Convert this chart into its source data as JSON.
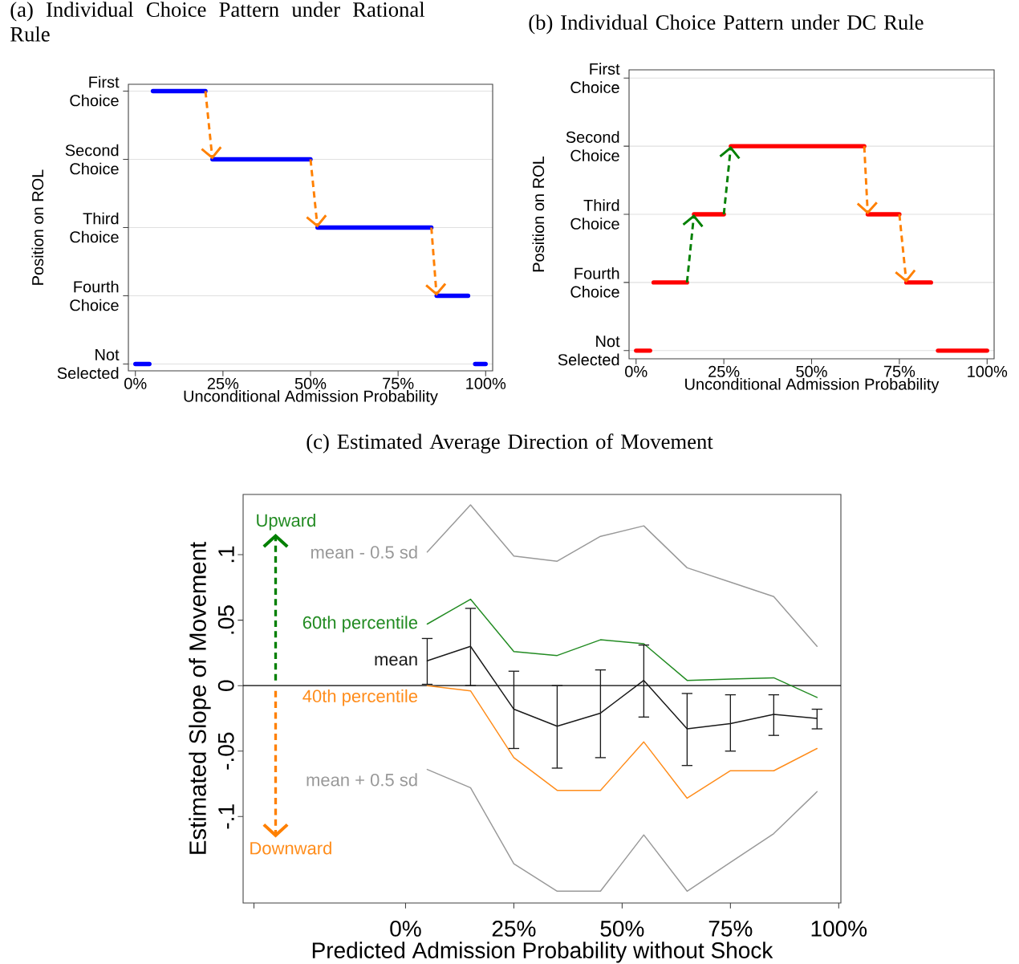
{
  "chart_data": [
    {
      "type": "bar",
      "orientation": "horizontal",
      "title": "(a) Individual Choice Pattern under Rational Rule",
      "xlabel": "Unconditional Admission Probability",
      "ylabel": "Position on ROL",
      "categories": [
        "First Choice",
        "Second Choice",
        "Third Choice",
        "Fourth Choice",
        "Not Selected"
      ],
      "xlim": [
        -2,
        102
      ],
      "xticks": [
        {
          "value": 0,
          "label": "0%"
        },
        {
          "value": 25,
          "label": "25%"
        },
        {
          "value": 50,
          "label": "50%"
        },
        {
          "value": 75,
          "label": "75%"
        },
        {
          "value": 100,
          "label": "100%"
        }
      ],
      "grid": "y",
      "series": [
        {
          "color": "#0000ff",
          "values": [
            15,
            28,
            32.5,
            9,
            4
          ],
          "base": [
            5,
            22,
            52,
            86,
            0
          ]
        },
        {
          "color": "#0000ff",
          "values": [
            null,
            null,
            null,
            null,
            3
          ],
          "base": [
            null,
            null,
            null,
            null,
            97
          ]
        }
      ]
    },
    {
      "type": "bar",
      "orientation": "horizontal",
      "title": "(b) Individual Choice Pattern under DC Rule",
      "xlabel": "Unconditional Admission Probability",
      "ylabel": "Position on ROL",
      "categories": [
        "First Choice",
        "Second Choice",
        "Third Choice",
        "Fourth Choice",
        "Not Selected"
      ],
      "xlim": [
        -2,
        102
      ],
      "xticks": [
        {
          "value": 0,
          "label": "0%"
        },
        {
          "value": 25,
          "label": "25%"
        },
        {
          "value": 50,
          "label": "50%"
        },
        {
          "value": 75,
          "label": "75%"
        },
        {
          "value": 100,
          "label": "100%"
        }
      ],
      "grid": "y",
      "series": [
        {
          "color": "#ff0000",
          "values": [
            null,
            38,
            8.5,
            9.5,
            4
          ],
          "base": [
            null,
            27,
            16.5,
            5,
            0
          ]
        },
        {
          "color": "#ff0000",
          "values": [
            null,
            null,
            9,
            7,
            14
          ],
          "base": [
            null,
            null,
            66,
            77,
            86
          ]
        }
      ]
    },
    {
      "type": "line",
      "title": "(c) Estimated Average Direction of Movement",
      "xlabel": "Predicted Admission Probability without Shock",
      "ylabel": "Estimated Slope of Movement",
      "x": [
        5,
        15,
        25,
        35,
        45,
        55,
        65,
        75,
        85,
        95
      ],
      "xlim": [
        -37.5,
        100.5
      ],
      "xticks": [
        {
          "value": -35,
          "label": null
        },
        {
          "value": 0,
          "label": "0%"
        },
        {
          "value": 25,
          "label": "25%"
        },
        {
          "value": 50,
          "label": "50%"
        },
        {
          "value": 75,
          "label": "75%"
        },
        {
          "value": 100,
          "label": "100%"
        }
      ],
      "ylim": [
        -0.166,
        0.146
      ],
      "yticks": [
        {
          "value": -0.1,
          "label": "-.1"
        },
        {
          "value": -0.05,
          "label": "-.05"
        },
        {
          "value": 0,
          "label": "0"
        },
        {
          "value": 0.05,
          "label": ".05"
        },
        {
          "value": 0.1,
          "label": ".1"
        }
      ],
      "ref_lines": [
        {
          "axis": "y",
          "value": 0,
          "color": "#000000"
        }
      ],
      "annotations": [
        "Upward",
        "Downward"
      ],
      "series": [
        {
          "name": "mean - 0.5 sd",
          "color": "#999999",
          "values": [
            0.102,
            0.138,
            0.099,
            0.095,
            0.114,
            0.122,
            0.09,
            0.079,
            0.068,
            0.03
          ]
        },
        {
          "name": "60th percentile",
          "color": "#228b22",
          "values": [
            0.047,
            0.066,
            0.026,
            0.023,
            0.035,
            0.032,
            0.004,
            0.005,
            0.006,
            -0.009
          ]
        },
        {
          "name": "mean",
          "color": "#1a1a1a",
          "values": [
            0.019,
            0.03,
            -0.018,
            -0.031,
            -0.021,
            0.004,
            -0.033,
            -0.029,
            -0.022,
            -0.025
          ],
          "errors": [
            [
              0.001,
              0.036
            ],
            [
              0,
              0.059
            ],
            [
              -0.048,
              0.011
            ],
            [
              -0.063,
              0
            ],
            [
              -0.055,
              0.012
            ],
            [
              -0.024,
              0.031
            ],
            [
              -0.061,
              -0.006
            ],
            [
              -0.05,
              -0.007
            ],
            [
              -0.038,
              -0.007
            ],
            [
              -0.033,
              -0.018
            ]
          ]
        },
        {
          "name": "40th percentile",
          "color": "#ff8c1a",
          "values": [
            0,
            -0.004,
            -0.055,
            -0.08,
            -0.08,
            -0.043,
            -0.086,
            -0.065,
            -0.065,
            -0.048
          ]
        },
        {
          "name": "mean + 0.5 sd",
          "color": "#999999",
          "values": [
            -0.064,
            -0.078,
            -0.136,
            -0.157,
            -0.157,
            -0.114,
            -0.157,
            -0.135,
            -0.113,
            -0.081
          ]
        }
      ]
    }
  ]
}
